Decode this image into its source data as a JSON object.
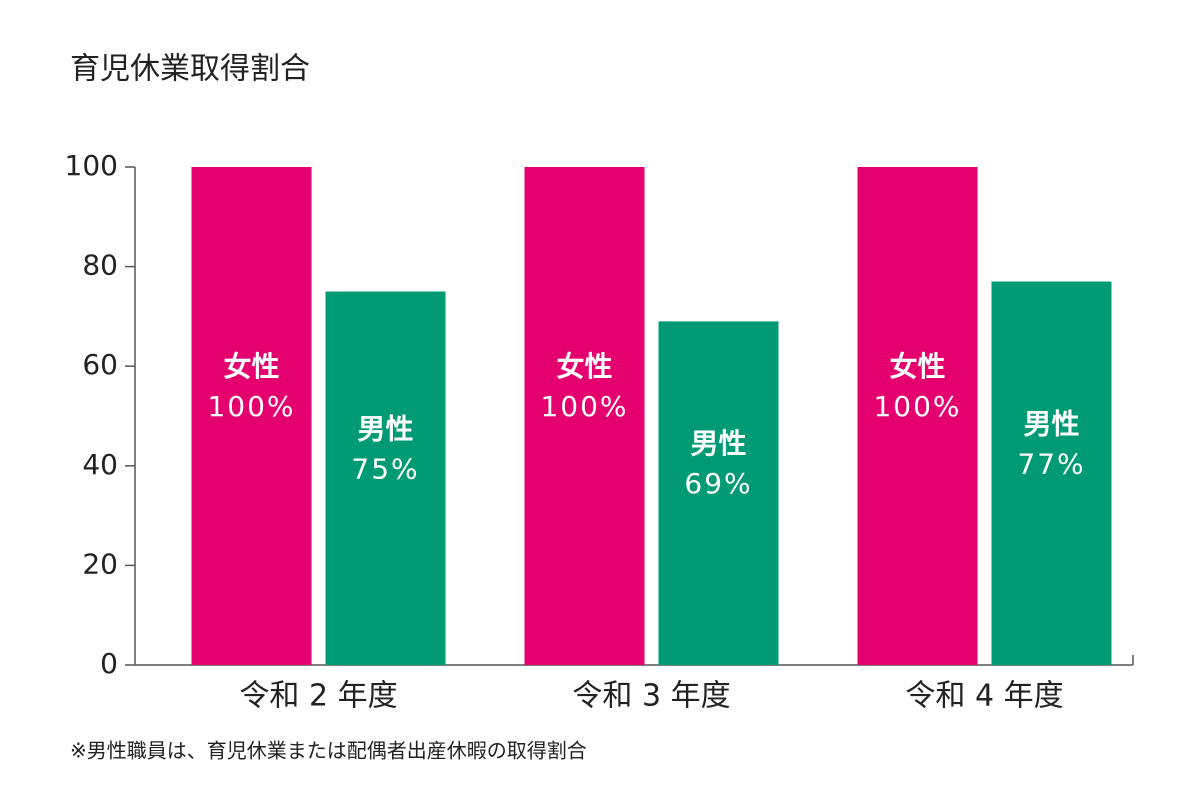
{
  "chart_data": {
    "type": "bar",
    "title": "育児休業取得割合",
    "categories": [
      "令和 2 年度",
      "令和 3 年度",
      "令和 4 年度"
    ],
    "series": [
      {
        "name": "女性",
        "color": "#e4006e",
        "values": [
          100,
          100,
          100
        ],
        "value_labels": [
          "100%",
          "100%",
          "100%"
        ]
      },
      {
        "name": "男性",
        "color": "#009b75",
        "values": [
          75,
          69,
          77
        ],
        "value_labels": [
          "75%",
          "69%",
          "77%"
        ]
      }
    ],
    "ylim": [
      0,
      100
    ],
    "yticks": [
      0,
      20,
      40,
      60,
      80,
      100
    ],
    "grid": false,
    "note": "※男性職員は、育児休業または配偶者出産休暇の取得割合"
  }
}
